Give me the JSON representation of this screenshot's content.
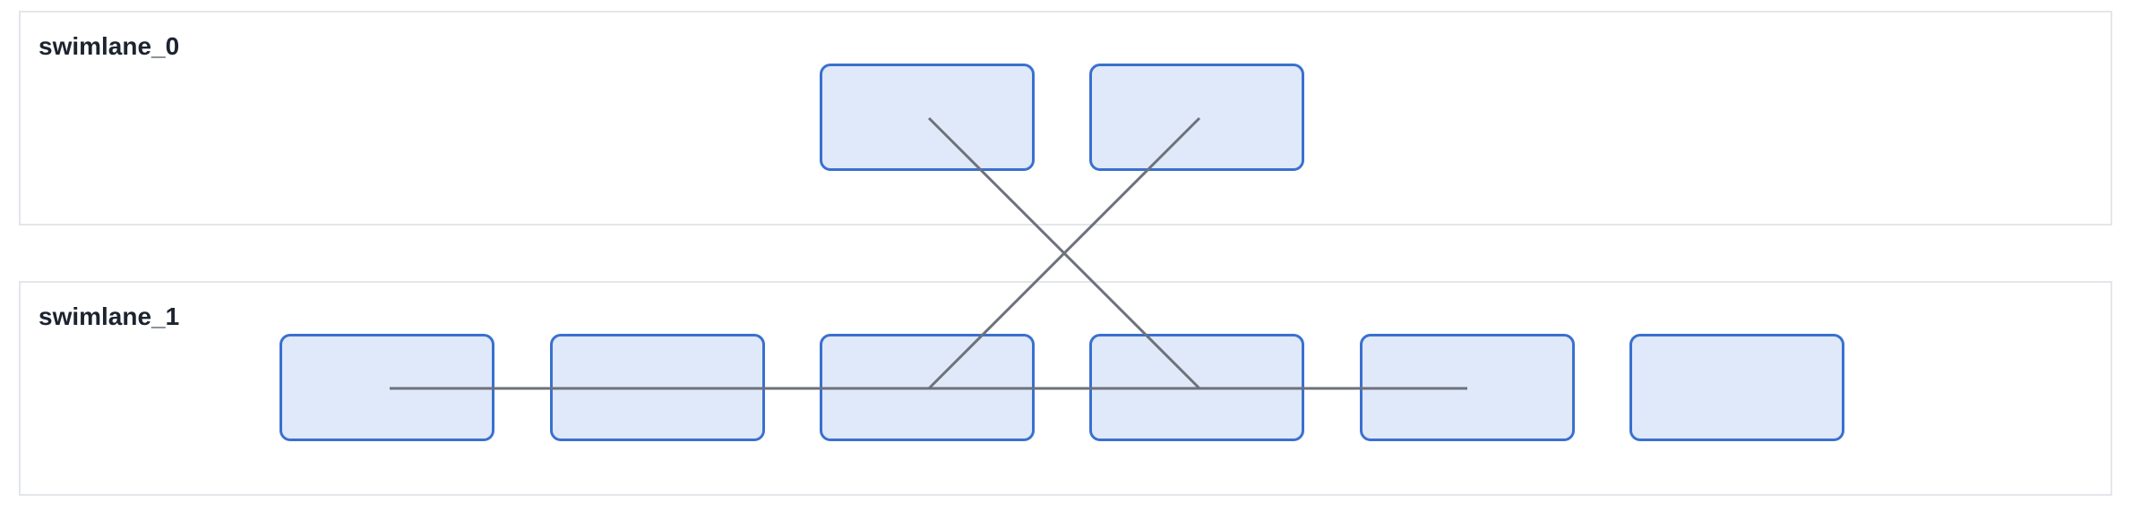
{
  "swimlanes": [
    {
      "label": "swimlane_0"
    },
    {
      "label": "swimlane_1"
    }
  ],
  "colors": {
    "lane_border": "#e3e6ea",
    "node_fill": "#dfe9f9",
    "node_border": "#3a70cf",
    "edge": "#6d717b",
    "label_text": "#1d2430"
  }
}
